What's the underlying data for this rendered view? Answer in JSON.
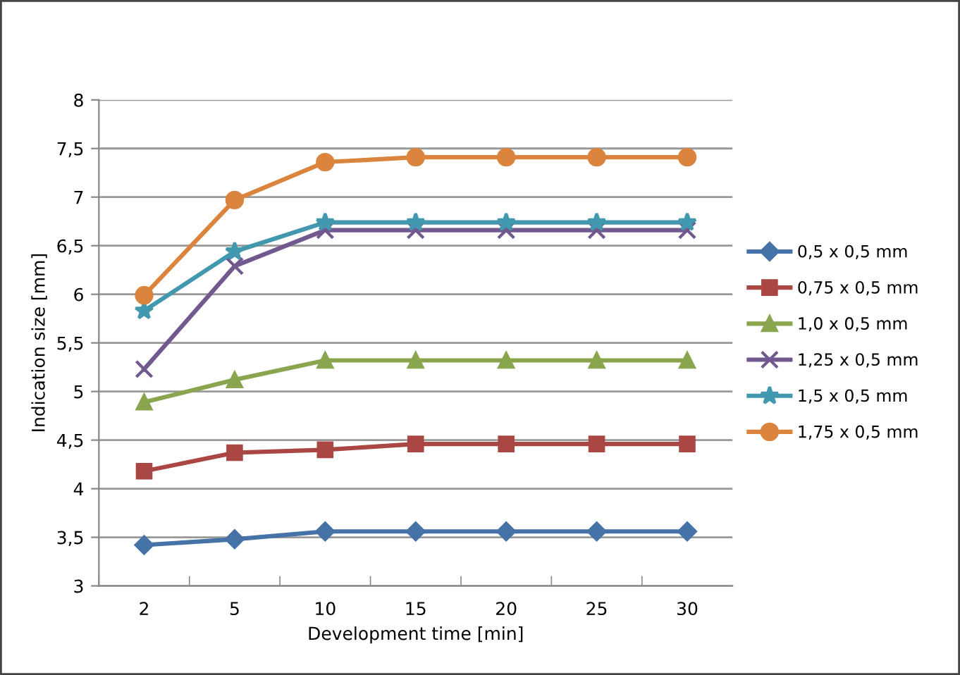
{
  "chart_data": {
    "type": "line",
    "xlabel": "Development time [min]",
    "ylabel": "Indication size [mm]",
    "categories": [
      "2",
      "5",
      "10",
      "15",
      "20",
      "25",
      "30"
    ],
    "ylim": [
      3,
      8
    ],
    "yticks": [
      3,
      {
        "value": 3.5,
        "label": "3,5"
      },
      4,
      {
        "value": 4.5,
        "label": "4,5"
      },
      5,
      {
        "value": 5.5,
        "label": "5,5"
      },
      6,
      {
        "value": 6.5,
        "label": "6,5"
      },
      7,
      {
        "value": 7.5,
        "label": "7,5"
      },
      8
    ],
    "grid": "y",
    "legend": "right",
    "series": [
      {
        "name": "0,5 x 0,5 mm",
        "color": "#4572a7",
        "marker": "diamond",
        "values": [
          3.42,
          3.48,
          3.56,
          3.56,
          3.56,
          3.56,
          3.56
        ]
      },
      {
        "name": "0,75 x 0,5 mm",
        "color": "#aa4643",
        "marker": "square",
        "values": [
          4.18,
          4.37,
          4.4,
          4.46,
          4.46,
          4.46,
          4.46
        ]
      },
      {
        "name": "1,0 x 0,5 mm",
        "color": "#89a54e",
        "marker": "triangle",
        "values": [
          4.89,
          5.12,
          5.32,
          5.32,
          5.32,
          5.32,
          5.32
        ]
      },
      {
        "name": "1,25 x 0,5 mm",
        "color": "#71588f",
        "marker": "cross",
        "values": [
          5.23,
          6.29,
          6.66,
          6.66,
          6.66,
          6.66,
          6.66
        ]
      },
      {
        "name": "1,5 x 0,5 mm",
        "color": "#4198af",
        "marker": "star",
        "values": [
          5.83,
          6.44,
          6.74,
          6.74,
          6.74,
          6.74,
          6.74
        ]
      },
      {
        "name": "1,75 x 0,5 mm",
        "color": "#db843d",
        "marker": "circle",
        "values": [
          5.99,
          6.97,
          7.36,
          7.41,
          7.41,
          7.41,
          7.41
        ]
      }
    ]
  }
}
